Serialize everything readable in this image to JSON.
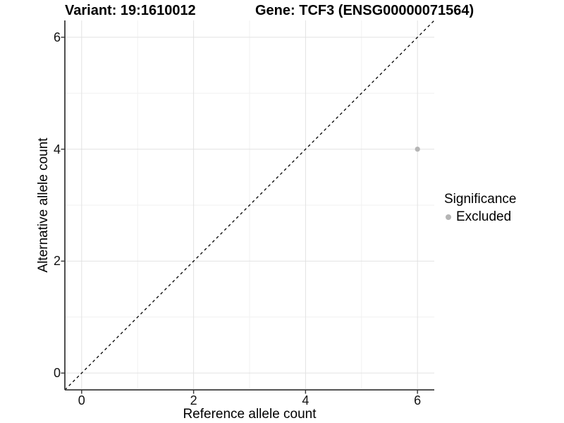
{
  "chart_data": {
    "type": "scatter",
    "title_left": "Variant: 19:1610012",
    "title_right": "Gene: TCF3 (ENSG00000071564)",
    "xlabel": "Reference allele count",
    "ylabel": "Alternative allele count",
    "xlim": [
      -0.3,
      6.3
    ],
    "ylim": [
      -0.3,
      6.3
    ],
    "x_major_ticks": [
      0,
      2,
      4,
      6
    ],
    "y_major_ticks": [
      0,
      2,
      4,
      6
    ],
    "x_minor_ticks": [
      1,
      3,
      5
    ],
    "y_minor_ticks": [
      1,
      3,
      5
    ],
    "grid": true,
    "points": [
      {
        "x": 6,
        "y": 4,
        "series": "Excluded"
      }
    ],
    "reference_line": {
      "type": "identity",
      "style": "dashed",
      "from": [
        -0.3,
        -0.3
      ],
      "to": [
        6.3,
        6.3
      ],
      "color": "#000000"
    },
    "legend": {
      "title": "Significance",
      "position": "right",
      "items": [
        {
          "label": "Excluded",
          "color": "#b5b5b5"
        }
      ]
    },
    "colors": {
      "point": "#b5b5b5",
      "grid_major": "#e2e2e2",
      "grid_minor": "#f1f1f1",
      "axis_line": "#3c3c3c",
      "tick_mark": "#333333",
      "dashed_line": "#000000",
      "panel_background": "#ffffff"
    }
  }
}
